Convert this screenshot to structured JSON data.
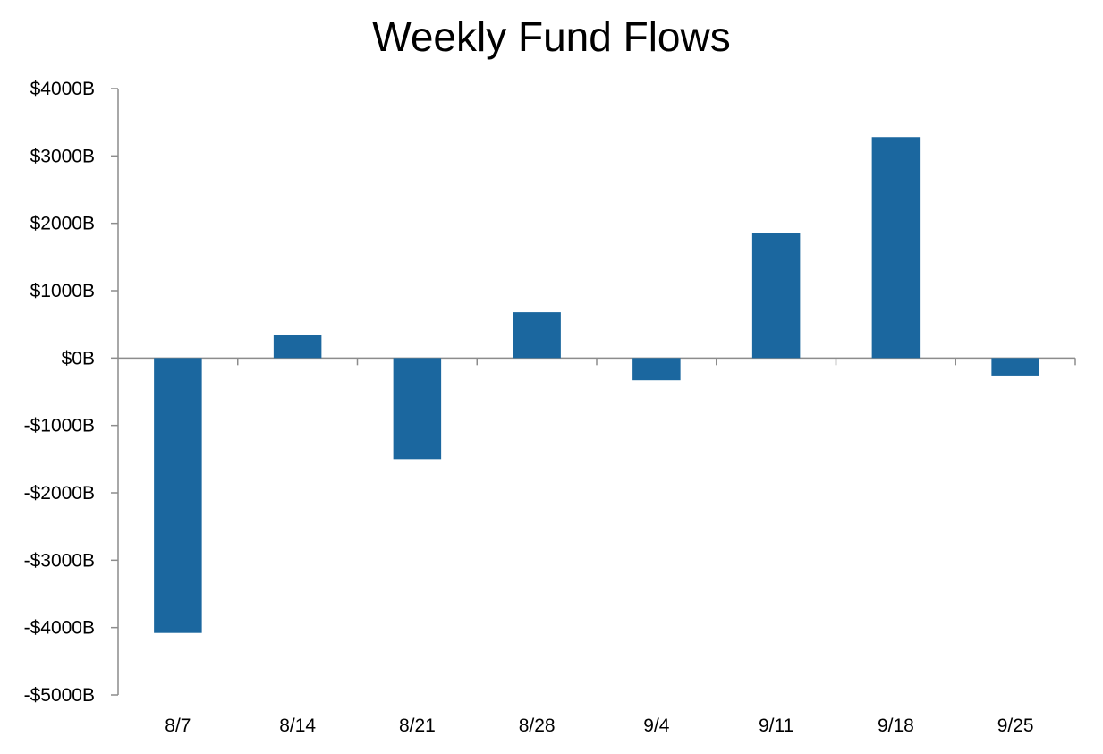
{
  "chart_data": {
    "type": "bar",
    "title": "Weekly Fund Flows",
    "xlabel": "",
    "ylabel": "",
    "categories": [
      "8/7",
      "8/14",
      "8/21",
      "8/28",
      "9/4",
      "9/11",
      "9/18",
      "9/25"
    ],
    "series": [
      {
        "values": [
          -4080,
          340,
          -1500,
          680,
          -330,
          1860,
          3280,
          -260
        ]
      }
    ],
    "ylim": [
      -5000,
      4000
    ],
    "yticks": [
      4000,
      3000,
      2000,
      1000,
      0,
      -1000,
      -2000,
      -3000,
      -4000,
      -5000
    ],
    "ytick_labels": [
      "$4000B",
      "$3000B",
      "$2000B",
      "$1000B",
      "$0B",
      "-$1000B",
      "-$2000B",
      "-$3000B",
      "-$4000B",
      "-$5000B"
    ],
    "grid": false,
    "legend": "none",
    "colors": {
      "bar": "#1b679f",
      "axis": "#8c8c8c"
    }
  }
}
